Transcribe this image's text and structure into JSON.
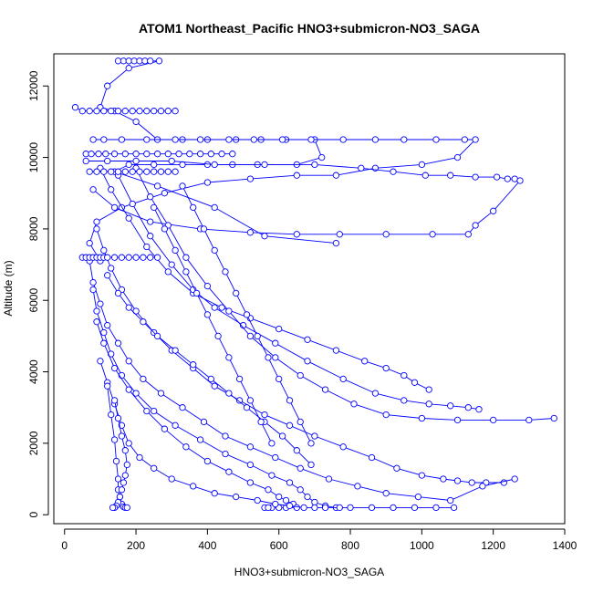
{
  "chart_data": {
    "type": "scatter",
    "title": "ATOM1 Northeast_Pacific HNO3+submicron-NO3_SAGA",
    "xlabel": "HNO3+submicron-NO3_SAGA",
    "ylabel": "Altitude (m)",
    "xlim": [
      -30,
      1400
    ],
    "ylim": [
      -250,
      12900
    ],
    "x_ticks": [
      0,
      200,
      400,
      600,
      800,
      1000,
      1200,
      1400
    ],
    "y_ticks": [
      0,
      2000,
      4000,
      6000,
      8000,
      10000,
      12000
    ],
    "x_tick_labels": [
      "0",
      "200",
      "400",
      "600",
      "800",
      "1000",
      "1200",
      "1400"
    ],
    "y_tick_labels": [
      "0",
      "2000",
      "4000",
      "6000",
      "8000",
      "10000",
      "12000"
    ],
    "marker": "open-circle",
    "line": true,
    "color": "#0000ff",
    "grid": false,
    "series": [
      {
        "x": [
          150,
          165,
          180,
          195,
          210,
          225,
          240,
          265,
          180,
          120,
          100,
          140,
          200,
          260,
          330,
          400,
          480,
          550,
          620,
          700,
          720,
          650,
          540,
          470,
          400,
          330,
          250,
          180,
          140,
          260,
          420,
          560,
          760
        ],
        "y": [
          12700,
          12700,
          12700,
          12700,
          12700,
          12700,
          12700,
          12700,
          12500,
          12000,
          11400,
          11300,
          11000,
          10500,
          10500,
          10500,
          10500,
          10500,
          10500,
          10500,
          10000,
          9800,
          9800,
          9800,
          9800,
          9800,
          9800,
          9800,
          9600,
          9200,
          8600,
          7800,
          7600
        ]
      },
      {
        "x": [
          80,
          110,
          160,
          230,
          310,
          380,
          460,
          530,
          610,
          690,
          780,
          870,
          950,
          1040,
          1120,
          1150,
          1100,
          1000,
          870,
          760,
          650,
          520,
          400,
          280,
          160,
          90,
          70,
          100
        ],
        "y": [
          10500,
          10500,
          10500,
          10500,
          10500,
          10500,
          10500,
          10500,
          10500,
          10500,
          10500,
          10500,
          10500,
          10500,
          10500,
          10500,
          10000,
          9800,
          9700,
          9500,
          9500,
          9400,
          9300,
          9000,
          8600,
          8200,
          7600,
          7100
        ]
      },
      {
        "x": [
          60,
          120,
          200,
          300,
          420,
          560,
          700,
          830,
          920,
          1010,
          1080,
          1150,
          1210,
          1240,
          1260,
          1275,
          1200,
          1150,
          1130,
          1030,
          900,
          770,
          650,
          520,
          380,
          240,
          140,
          80
        ],
        "y": [
          9900,
          9900,
          9900,
          9900,
          9800,
          9800,
          9800,
          9700,
          9600,
          9500,
          9500,
          9450,
          9450,
          9400,
          9400,
          9350,
          8500,
          8100,
          7850,
          7850,
          7850,
          7850,
          7850,
          7900,
          8000,
          8200,
          8600,
          9100
        ]
      },
      {
        "x": [
          100,
          130,
          180,
          230,
          290,
          360,
          440,
          520,
          600,
          680,
          760,
          840,
          900,
          950,
          980,
          1020
        ],
        "y": [
          9700,
          9100,
          8300,
          7500,
          6800,
          6200,
          5800,
          5500,
          5200,
          4900,
          4600,
          4300,
          4100,
          3900,
          3700,
          3500
        ]
      },
      {
        "x": [
          150,
          190,
          240,
          300,
          360,
          420,
          500,
          590,
          680,
          780,
          870,
          950,
          1020,
          1080,
          1130,
          1160
        ],
        "y": [
          9500,
          8700,
          7800,
          7000,
          6300,
          5800,
          5300,
          4800,
          4300,
          3800,
          3400,
          3200,
          3100,
          3050,
          3000,
          2950
        ]
      },
      {
        "x": [
          200,
          240,
          290,
          340,
          400,
          460,
          520,
          590,
          660,
          730,
          810,
          900,
          1000,
          1100,
          1200,
          1300,
          1370
        ],
        "y": [
          9700,
          8900,
          8100,
          7200,
          6400,
          5700,
          5000,
          4400,
          3900,
          3500,
          3100,
          2800,
          2700,
          2650,
          2650,
          2650,
          2700
        ]
      },
      {
        "x": [
          90,
          110,
          130,
          160,
          200,
          250,
          300,
          360,
          420,
          490,
          560,
          630,
          700,
          780,
          860,
          930,
          1000,
          1060,
          1100,
          1140,
          1180,
          1230
        ],
        "y": [
          8000,
          7400,
          6900,
          6300,
          5700,
          5100,
          4600,
          4100,
          3600,
          3200,
          2800,
          2500,
          2200,
          1900,
          1600,
          1300,
          1100,
          1000,
          950,
          900,
          900,
          900
        ]
      },
      {
        "x": [
          70,
          80,
          100,
          120,
          150,
          180,
          220,
          270,
          330,
          390,
          450,
          520,
          590,
          660,
          740,
          820,
          900,
          990,
          1080,
          1170,
          1260
        ],
        "y": [
          7100,
          6500,
          5900,
          5300,
          4800,
          4300,
          3800,
          3400,
          3000,
          2600,
          2200,
          1900,
          1600,
          1300,
          1000,
          800,
          600,
          500,
          400,
          800,
          1000
        ]
      },
      {
        "x": [
          80,
          90,
          110,
          130,
          160,
          200,
          250,
          310,
          380,
          450,
          520,
          580,
          630,
          660,
          680,
          700,
          730,
          760,
          800,
          860,
          920,
          980,
          1040,
          1090
        ],
        "y": [
          6300,
          5700,
          5100,
          4500,
          3900,
          3400,
          2900,
          2500,
          2100,
          1700,
          1400,
          1100,
          900,
          700,
          500,
          350,
          250,
          200,
          200,
          200,
          200,
          200,
          200,
          200
        ]
      },
      {
        "x": [
          90,
          110,
          140,
          180,
          230,
          280,
          340,
          400,
          460,
          520,
          570,
          600,
          620,
          640,
          650,
          620,
          580,
          560,
          570,
          600
        ],
        "y": [
          5400,
          4800,
          4100,
          3500,
          2900,
          2400,
          1900,
          1500,
          1200,
          900,
          700,
          500,
          400,
          300,
          200,
          200,
          200,
          200,
          200,
          200
        ]
      },
      {
        "x": [
          100,
          120,
          140,
          160,
          180,
          210,
          250,
          300,
          360,
          420,
          480,
          540,
          590,
          630,
          670,
          700,
          730,
          770
        ],
        "y": [
          4300,
          3700,
          3100,
          2500,
          2000,
          1600,
          1300,
          1000,
          800,
          600,
          500,
          400,
          300,
          250,
          200,
          200,
          200,
          200
        ]
      },
      {
        "x": [
          120,
          130,
          140,
          145,
          150,
          150,
          155,
          160,
          165,
          170,
          175
        ],
        "y": [
          3600,
          2800,
          2100,
          1500,
          1000,
          700,
          500,
          300,
          220,
          200,
          200
        ]
      },
      {
        "x": [
          140,
          150,
          160,
          170,
          175,
          170,
          165,
          160,
          155,
          150,
          145,
          140,
          135
        ],
        "y": [
          3200,
          2700,
          2200,
          1800,
          1400,
          1100,
          900,
          700,
          500,
          350,
          250,
          200,
          200
        ]
      },
      {
        "x": [
          30,
          50,
          70,
          90,
          110,
          130,
          150,
          170,
          190,
          210,
          230,
          250,
          270,
          290,
          310
        ],
        "y": [
          11400,
          11300,
          11300,
          11300,
          11300,
          11300,
          11300,
          11300,
          11300,
          11300,
          11300,
          11300,
          11300,
          11300,
          11300
        ]
      },
      {
        "x": [
          60,
          75,
          95,
          115,
          140,
          170,
          200,
          230,
          260,
          290,
          320,
          350,
          380,
          410,
          440,
          470
        ],
        "y": [
          10100,
          10100,
          10100,
          10100,
          10100,
          10100,
          10100,
          10100,
          10100,
          10100,
          10100,
          10100,
          10100,
          10100,
          10100,
          10100
        ]
      },
      {
        "x": [
          70,
          90,
          110,
          130,
          150,
          170,
          190,
          210,
          230,
          250,
          270,
          290,
          310
        ],
        "y": [
          9600,
          9600,
          9600,
          9600,
          9600,
          9600,
          9600,
          9600,
          9600,
          9600,
          9600,
          9600,
          9600
        ]
      },
      {
        "x": [
          50,
          60,
          70,
          80,
          90,
          100,
          110,
          120,
          140,
          160,
          180,
          200,
          220,
          240,
          260
        ],
        "y": [
          7200,
          7200,
          7200,
          7200,
          7200,
          7200,
          7200,
          7200,
          7200,
          7200,
          7200,
          7200,
          7200,
          7200,
          7200
        ]
      },
      {
        "x": [
          120,
          150,
          180,
          220,
          260,
          310,
          360,
          410,
          460,
          510,
          560,
          610,
          650,
          690
        ],
        "y": [
          6700,
          6200,
          5800,
          5400,
          5000,
          4600,
          4200,
          3800,
          3400,
          3000,
          2600,
          2200,
          1800,
          1400
        ]
      },
      {
        "x": [
          250,
          280,
          310,
          340,
          370,
          400,
          430,
          460,
          490,
          520,
          550,
          580
        ],
        "y": [
          8600,
          8000,
          7400,
          6800,
          6200,
          5600,
          5000,
          4400,
          3800,
          3200,
          2600,
          2000
        ]
      },
      {
        "x": [
          330,
          360,
          390,
          420,
          450,
          480,
          510,
          540,
          570,
          600,
          630,
          660,
          690
        ],
        "y": [
          9200,
          8600,
          8000,
          7400,
          6800,
          6200,
          5600,
          5000,
          4400,
          3800,
          3200,
          2600,
          2000
        ]
      }
    ]
  }
}
